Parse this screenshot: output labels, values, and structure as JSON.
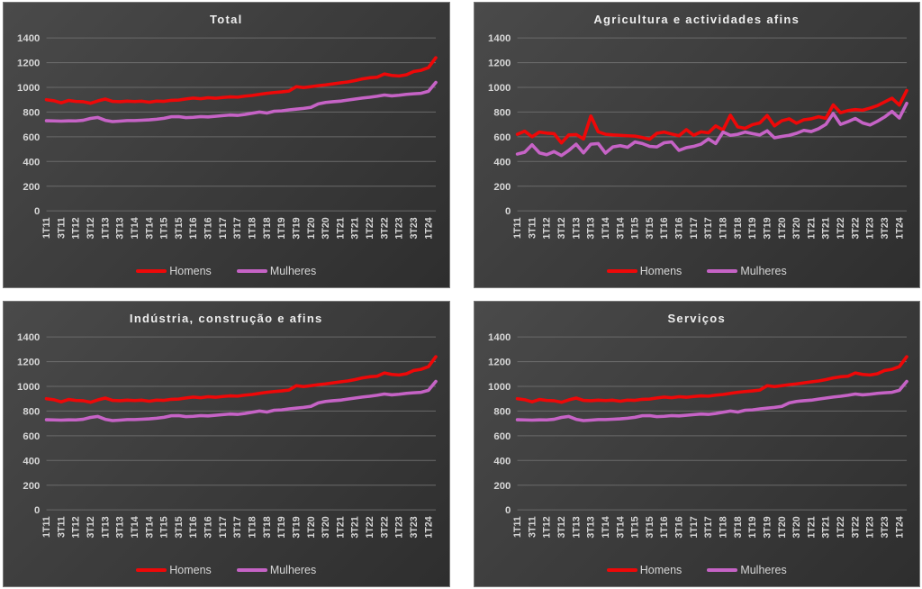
{
  "theme": {
    "page_background": "#ffffff",
    "panel_background_from": "#4a4a4a",
    "panel_background_to": "#2e2e2e",
    "gridline_color": "#6a6a6a",
    "tick_label_color": "#d6d6d6",
    "title_color": "#eeeeee",
    "homens_color": "#ee0808",
    "mulheres_color": "#c663c6"
  },
  "legend": {
    "items": [
      {
        "label": "Homens",
        "color": "#ee0808"
      },
      {
        "label": "Mulheres",
        "color": "#c663c6"
      }
    ]
  },
  "chart_data": [
    {
      "type": "line",
      "title": "Total",
      "ylabel": "",
      "xlabel": "",
      "ylim": [
        0,
        1400
      ],
      "ytick_step": 200,
      "grid": true,
      "legend_position": "bottom",
      "n_points": 54,
      "tick_every": 2,
      "x_labels": [
        "1T11",
        "3T11",
        "1T12",
        "3T12",
        "1T13",
        "3T13",
        "1T14",
        "3T14",
        "1T15",
        "3T15",
        "1T16",
        "3T16",
        "1T17",
        "3T17",
        "1T18",
        "3T18",
        "1T19",
        "3T19",
        "1T20",
        "3T20",
        "1T21",
        "3T21",
        "1T22",
        "3T22",
        "1T23",
        "3T23",
        "1T24"
      ],
      "series": [
        {
          "name": "Homens",
          "color": "#ee0808",
          "values": [
            900,
            892,
            875,
            894,
            886,
            884,
            871,
            890,
            905,
            887,
            884,
            888,
            885,
            888,
            880,
            889,
            887,
            895,
            897,
            906,
            913,
            908,
            916,
            912,
            918,
            923,
            921,
            929,
            934,
            944,
            952,
            958,
            963,
            970,
            1005,
            998,
            1005,
            1013,
            1020,
            1028,
            1036,
            1044,
            1055,
            1068,
            1078,
            1082,
            1108,
            1096,
            1092,
            1102,
            1128,
            1138,
            1160,
            1240
          ]
        },
        {
          "name": "Mulheres",
          "color": "#c663c6",
          "values": [
            730,
            728,
            727,
            729,
            728,
            733,
            748,
            756,
            733,
            723,
            727,
            731,
            731,
            734,
            737,
            742,
            750,
            762,
            763,
            755,
            758,
            763,
            761,
            766,
            771,
            776,
            773,
            780,
            790,
            800,
            792,
            807,
            810,
            818,
            824,
            830,
            838,
            866,
            878,
            884,
            888,
            897,
            905,
            913,
            920,
            928,
            938,
            931,
            936,
            944,
            948,
            952,
            968,
            1040
          ]
        }
      ]
    },
    {
      "type": "line",
      "title": "Agricultura e actividades afins",
      "ylabel": "",
      "xlabel": "",
      "ylim": [
        0,
        1400
      ],
      "ytick_step": 200,
      "grid": true,
      "legend_position": "bottom",
      "n_points": 54,
      "tick_every": 2,
      "x_labels": [
        "1T11",
        "3T11",
        "1T12",
        "3T12",
        "1T13",
        "3T13",
        "1T14",
        "3T14",
        "1T15",
        "3T15",
        "1T16",
        "3T16",
        "1T17",
        "3T17",
        "1T18",
        "3T18",
        "1T19",
        "3T19",
        "1T20",
        "3T20",
        "1T21",
        "3T21",
        "1T22",
        "3T22",
        "1T23",
        "3T23",
        "1T24"
      ],
      "series": [
        {
          "name": "Homens",
          "color": "#ee0808",
          "values": [
            620,
            645,
            600,
            638,
            630,
            625,
            550,
            615,
            618,
            582,
            768,
            640,
            620,
            615,
            612,
            608,
            605,
            594,
            580,
            628,
            638,
            622,
            608,
            658,
            612,
            640,
            632,
            688,
            655,
            775,
            680,
            668,
            698,
            712,
            772,
            688,
            730,
            745,
            710,
            738,
            745,
            762,
            750,
            858,
            795,
            812,
            820,
            815,
            832,
            852,
            882,
            912,
            856,
            975
          ]
        },
        {
          "name": "Mulheres",
          "color": "#c663c6",
          "values": [
            460,
            475,
            535,
            470,
            455,
            480,
            448,
            490,
            540,
            470,
            540,
            545,
            468,
            518,
            528,
            515,
            558,
            545,
            522,
            518,
            552,
            558,
            490,
            512,
            522,
            540,
            582,
            545,
            638,
            612,
            620,
            638,
            625,
            615,
            648,
            592,
            602,
            612,
            628,
            652,
            642,
            665,
            700,
            788,
            700,
            722,
            748,
            712,
            695,
            725,
            760,
            805,
            752,
            870
          ]
        }
      ]
    },
    {
      "type": "line",
      "title": "Indústria, construção e afins",
      "ylabel": "",
      "xlabel": "",
      "ylim": [
        0,
        1400
      ],
      "ytick_step": 200,
      "grid": true,
      "legend_position": "bottom",
      "n_points": 54,
      "tick_every": 2,
      "x_labels": [
        "1T11",
        "3T11",
        "1T12",
        "3T12",
        "1T13",
        "3T13",
        "1T14",
        "3T14",
        "1T15",
        "3T15",
        "1T16",
        "3T16",
        "1T17",
        "3T17",
        "1T18",
        "3T18",
        "1T19",
        "3T19",
        "1T20",
        "3T20",
        "1T21",
        "3T21",
        "1T22",
        "3T22",
        "1T23",
        "3T23",
        "1T24"
      ],
      "series": [
        {
          "name": "Homens",
          "color": "#ee0808",
          "values": [
            900,
            892,
            875,
            894,
            886,
            884,
            871,
            890,
            905,
            887,
            884,
            888,
            885,
            888,
            880,
            889,
            887,
            895,
            897,
            906,
            913,
            908,
            916,
            912,
            918,
            923,
            921,
            929,
            934,
            944,
            952,
            958,
            963,
            970,
            1005,
            998,
            1005,
            1013,
            1020,
            1028,
            1036,
            1044,
            1055,
            1068,
            1078,
            1082,
            1108,
            1096,
            1092,
            1102,
            1128,
            1138,
            1160,
            1240
          ]
        },
        {
          "name": "Mulheres",
          "color": "#c663c6",
          "values": [
            730,
            728,
            727,
            729,
            728,
            733,
            748,
            756,
            733,
            723,
            727,
            731,
            731,
            734,
            737,
            742,
            750,
            762,
            763,
            755,
            758,
            763,
            761,
            766,
            771,
            776,
            773,
            780,
            790,
            800,
            792,
            807,
            810,
            818,
            824,
            830,
            838,
            866,
            878,
            884,
            888,
            897,
            905,
            913,
            920,
            928,
            938,
            931,
            936,
            944,
            948,
            952,
            968,
            1040
          ]
        }
      ]
    },
    {
      "type": "line",
      "title": "Serviços",
      "ylabel": "",
      "xlabel": "",
      "ylim": [
        0,
        1400
      ],
      "ytick_step": 200,
      "grid": true,
      "legend_position": "bottom",
      "n_points": 54,
      "tick_every": 2,
      "x_labels": [
        "1T11",
        "3T11",
        "1T12",
        "3T12",
        "1T13",
        "3T13",
        "1T14",
        "3T14",
        "1T15",
        "3T15",
        "1T16",
        "3T16",
        "1T17",
        "3T17",
        "1T18",
        "3T18",
        "1T19",
        "3T19",
        "1T20",
        "3T20",
        "1T21",
        "3T21",
        "1T22",
        "3T22",
        "1T23",
        "3T23",
        "1T24"
      ],
      "series": [
        {
          "name": "Homens",
          "color": "#ee0808",
          "values": [
            900,
            892,
            875,
            894,
            886,
            884,
            871,
            890,
            905,
            887,
            884,
            888,
            885,
            888,
            880,
            889,
            887,
            895,
            897,
            906,
            913,
            908,
            916,
            912,
            918,
            923,
            921,
            929,
            934,
            944,
            952,
            958,
            963,
            970,
            1005,
            998,
            1005,
            1013,
            1020,
            1028,
            1036,
            1044,
            1055,
            1068,
            1078,
            1082,
            1108,
            1096,
            1092,
            1102,
            1128,
            1138,
            1160,
            1240
          ]
        },
        {
          "name": "Mulheres",
          "color": "#c663c6",
          "values": [
            730,
            728,
            727,
            729,
            728,
            733,
            748,
            756,
            733,
            723,
            727,
            731,
            731,
            734,
            737,
            742,
            750,
            762,
            763,
            755,
            758,
            763,
            761,
            766,
            771,
            776,
            773,
            780,
            790,
            800,
            792,
            807,
            810,
            818,
            824,
            830,
            838,
            866,
            878,
            884,
            888,
            897,
            905,
            913,
            920,
            928,
            938,
            931,
            936,
            944,
            948,
            952,
            968,
            1040
          ]
        }
      ]
    }
  ]
}
